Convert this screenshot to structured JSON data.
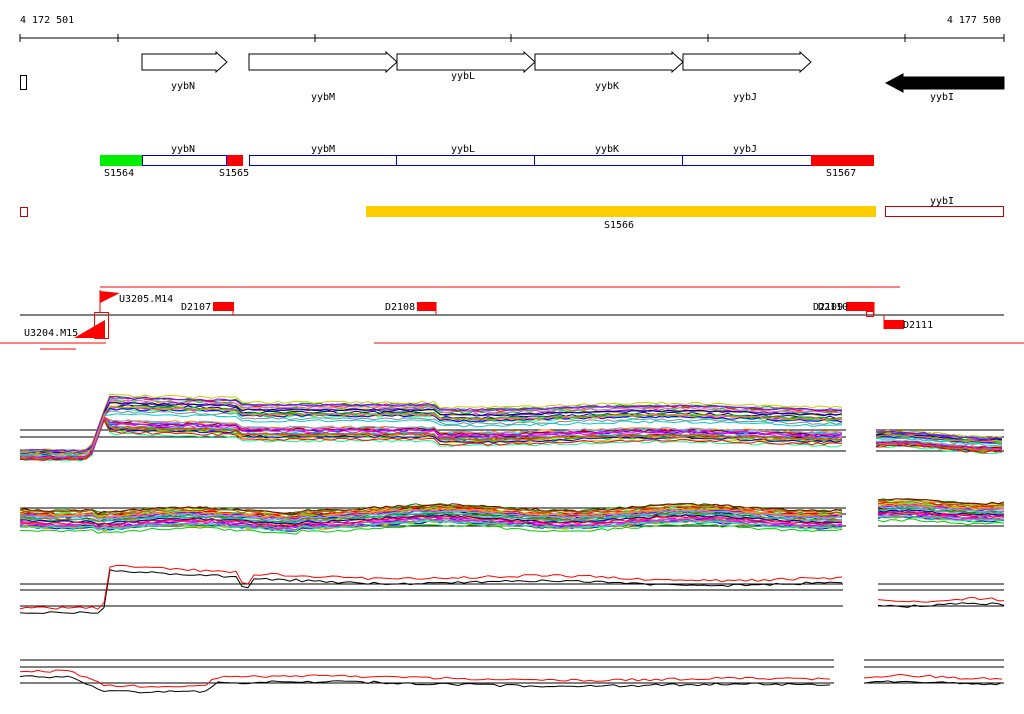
{
  "coords": {
    "start": "4 172 501",
    "end": "4 177 500"
  },
  "colors": {
    "axis": "#000000",
    "gene_outline": "#000000",
    "reverse_gene": "#000000",
    "blue_box": "#0000cc",
    "green_segment": "#00ee00",
    "red_segment": "#ff0000",
    "yellow_bar": "#ffcc00",
    "red_outline": "#cc0000",
    "profile_palette": [
      "#ff0000",
      "#00cc00",
      "#0000ff",
      "#ff00ff",
      "#00cccc",
      "#cccc00",
      "#ff8800",
      "#8800ff",
      "#008800",
      "#880000",
      "#000088",
      "#888888",
      "#ff66aa",
      "#66aaff",
      "#aa6600",
      "#00ff88"
    ]
  },
  "genes": {
    "forward": [
      {
        "label": "yybN"
      },
      {
        "label": "yybM"
      },
      {
        "label": "yybL"
      },
      {
        "label": "yybK"
      },
      {
        "label": "yybJ"
      }
    ],
    "reverse": {
      "label": "yybI"
    }
  },
  "blue_row": {
    "genes": [
      {
        "label": "yybN"
      },
      {
        "label": "yybM"
      },
      {
        "label": "yybL"
      },
      {
        "label": "yybK"
      },
      {
        "label": "yybJ"
      }
    ],
    "segments": [
      {
        "label": "S1564"
      },
      {
        "label": "S1565"
      },
      {
        "label": "S1567"
      }
    ]
  },
  "yellow_row": {
    "label": "S1566",
    "reverse_gene_label": "yybI"
  },
  "features": {
    "u3205": "U3205.M14",
    "u3204": "U3204.M15",
    "d2107": "D2107",
    "d2108": "D2108",
    "d2109": "D2109",
    "d2110": "D2110",
    "d2111": "D2111"
  },
  "icons": {
    "forward_gene": "open-arrow-right",
    "reverse_gene": "solid-arrow-left",
    "feature": "flag-icon"
  }
}
